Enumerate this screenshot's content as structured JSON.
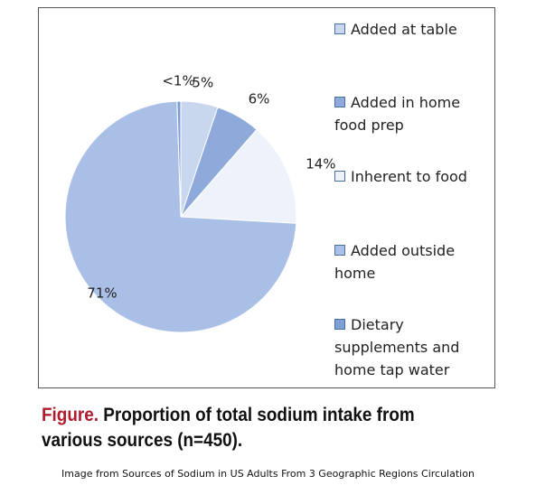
{
  "chart_data": {
    "type": "pie",
    "categories": [
      "Added at table",
      "Added in home food prep",
      "Inherent to food",
      "Added outside home",
      "Dietary supplements and home tap water"
    ],
    "values": [
      5,
      6,
      14,
      71,
      0.5
    ],
    "value_labels": [
      "5%",
      "6%",
      "14%",
      "71%",
      "<1%"
    ],
    "colors": [
      "#c9d7ee",
      "#8eaadb",
      "#eef3fb",
      "#a9bfe6",
      "#7f9fd4"
    ]
  },
  "caption": {
    "prefix": "Figure.",
    "text": "Proportion of total sodium intake from various sources (n=450)."
  },
  "source": "Image from Sources of Sodium in US Adults From 3 Geographic Regions Circulation"
}
